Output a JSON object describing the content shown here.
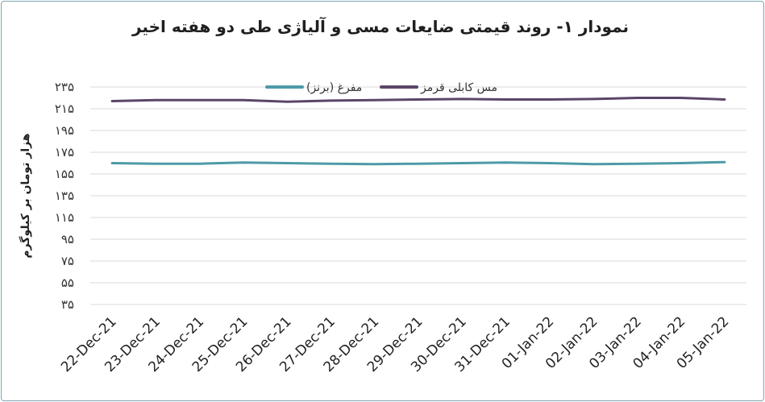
{
  "chart_data": {
    "type": "line",
    "title": "نمودار ۱- روند قیمتی ضایعات مسی و آلیاژی طی دو هفته اخیر",
    "ylabel": "هزار تومان بر کیلوگرم",
    "xlabel": "",
    "categories": [
      "22-Dec-21",
      "23-Dec-21",
      "24-Dec-21",
      "25-Dec-21",
      "26-Dec-21",
      "27-Dec-21",
      "28-Dec-21",
      "29-Dec-21",
      "30-Dec-21",
      "31-Dec-21",
      "01-Jan-22",
      "02-Jan-22",
      "03-Jan-22",
      "04-Jan-22",
      "05-Jan-22"
    ],
    "yticks": [
      "۳۵",
      "۵۵",
      "۷۵",
      "۹۵",
      "۱۱۵",
      "۱۳۵",
      "۱۵۵",
      "۱۷۵",
      "۱۹۵",
      "۲۱۵",
      "۲۳۵"
    ],
    "ylim": [
      35,
      235
    ],
    "grid": true,
    "legend_position": "top-center",
    "series": [
      {
        "name": "مس کابلی قرمز",
        "color": "#5a4668",
        "values": [
          222,
          223,
          223,
          223,
          221.5,
          222.5,
          223,
          223.5,
          224,
          223.5,
          223.5,
          224,
          225,
          225,
          223.5
        ]
      },
      {
        "name": "مفرغ (برنز)",
        "color": "#4e9aa8",
        "values": [
          165,
          164.5,
          164.5,
          165.5,
          165,
          164.5,
          164,
          164.5,
          165,
          165.5,
          165,
          164,
          164.5,
          165,
          166
        ]
      }
    ]
  }
}
